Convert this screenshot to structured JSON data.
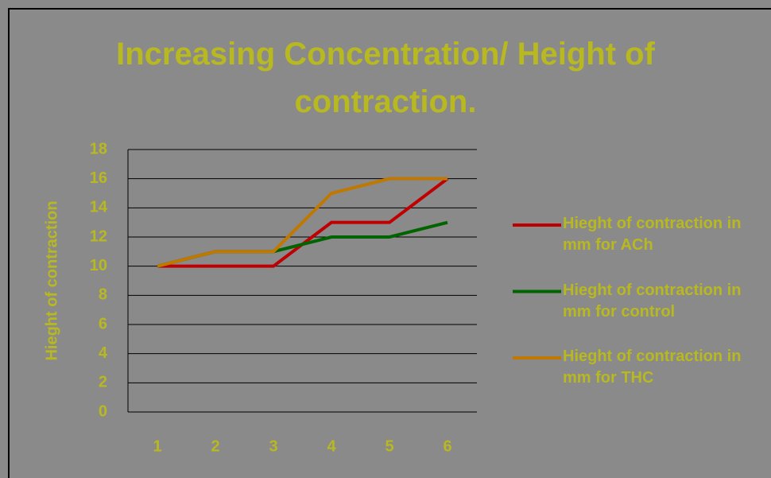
{
  "chart_data": {
    "type": "line",
    "title": "Increasing Concentration/ Height of contraction.",
    "y_label": "Hieght of contraction",
    "categories": [
      "1",
      "2",
      "3",
      "4",
      "5",
      "6"
    ],
    "series": [
      {
        "name": "Hieght of contraction in mm for ACh",
        "color": "#c00000",
        "values": [
          10,
          10,
          10,
          13,
          13,
          16
        ]
      },
      {
        "name": "Hieght of contraction in mm for control",
        "color": "#006400",
        "values": [
          10,
          11,
          11,
          12,
          12,
          13
        ]
      },
      {
        "name": "Hieght of contraction in mm for THC",
        "color": "#c07800",
        "values": [
          10,
          11,
          11,
          15,
          16,
          16
        ]
      }
    ],
    "ylim": [
      0,
      18
    ],
    "yticks": [
      0,
      2,
      4,
      6,
      8,
      10,
      12,
      14,
      16,
      18
    ],
    "grid": true,
    "legend": "right"
  }
}
